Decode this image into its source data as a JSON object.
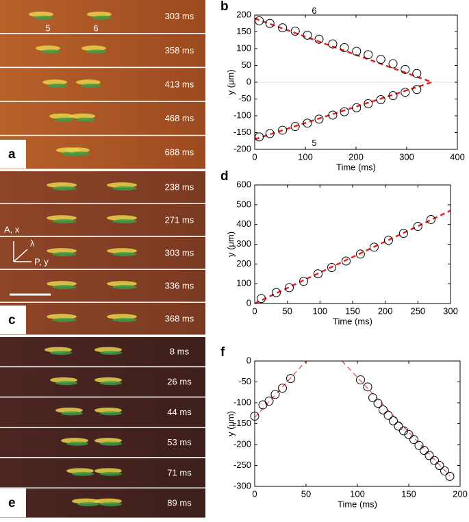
{
  "panels": {
    "a": {
      "label": "a",
      "frames": [
        "303 ms",
        "358 ms",
        "413 ms",
        "468 ms",
        "688 ms"
      ],
      "annotations": [
        "5",
        "6"
      ]
    },
    "c": {
      "label": "c",
      "frames": [
        "238 ms",
        "271 ms",
        "303 ms",
        "336 ms",
        "368 ms"
      ],
      "annotations": [
        "A,  x",
        "λ",
        "P,  y"
      ]
    },
    "e": {
      "label": "e",
      "frames": [
        "8 ms",
        "26 ms",
        "44 ms",
        "53 ms",
        "71 ms",
        "89 ms"
      ]
    }
  },
  "chart_data": [
    {
      "type": "scatter",
      "panel": "b",
      "xlabel": "Time (ms)",
      "ylabel": "y (μm)",
      "xlim": [
        0,
        400
      ],
      "xticks": [
        0,
        100,
        200,
        300,
        400
      ],
      "ylim": [
        -200,
        200
      ],
      "yticks": [
        -200,
        -150,
        -100,
        -50,
        0,
        50,
        100,
        150,
        200
      ],
      "zero_line": true,
      "series": [
        {
          "name": "6",
          "x": [
            9,
            30,
            55,
            80,
            104,
            127,
            154,
            177,
            201,
            224,
            249,
            273,
            297,
            320
          ],
          "values": [
            183,
            175,
            162,
            152,
            140,
            128,
            114,
            103,
            92,
            82,
            68,
            55,
            38,
            26
          ]
        },
        {
          "name": "5",
          "x": [
            9,
            30,
            55,
            80,
            104,
            127,
            154,
            177,
            201,
            224,
            249,
            273,
            297,
            320
          ],
          "values": [
            -163,
            -153,
            -143,
            -132,
            -122,
            -110,
            -98,
            -88,
            -76,
            -64,
            -52,
            -40,
            -30,
            -22
          ]
        }
      ],
      "fits": [
        {
          "x": [
            0,
            350
          ],
          "values": [
            190,
            0
          ]
        },
        {
          "x": [
            0,
            350
          ],
          "values": [
            -170,
            0
          ]
        }
      ],
      "fit_color": "#e8221f",
      "fit_width": 2.5
    },
    {
      "type": "scatter",
      "panel": "d",
      "xlabel": "Time (ms)",
      "ylabel": "y (μm)",
      "xlim": [
        0,
        300
      ],
      "xticks": [
        0,
        50,
        100,
        150,
        200,
        250,
        300
      ],
      "ylim": [
        0,
        600
      ],
      "yticks": [
        0,
        100,
        200,
        300,
        400,
        500,
        600
      ],
      "zero_line": false,
      "series": [
        {
          "x": [
            10,
            33,
            53,
            75,
            97,
            118,
            140,
            162,
            183,
            205,
            228,
            250,
            270
          ],
          "values": [
            25,
            55,
            80,
            112,
            150,
            182,
            215,
            250,
            285,
            320,
            355,
            390,
            425
          ]
        }
      ],
      "fits": [
        {
          "x": [
            0,
            300
          ],
          "values": [
            0,
            470
          ]
        }
      ],
      "fit_color": "#e8221f",
      "fit_width": 2.5
    },
    {
      "type": "scatter",
      "panel": "f",
      "xlabel": "Time (ms)",
      "ylabel": "y (μm)",
      "xlim": [
        0,
        200
      ],
      "xticks": [
        0,
        50,
        100,
        150,
        200
      ],
      "ylim": [
        -300,
        0
      ],
      "yticks": [
        -300,
        -250,
        -200,
        -150,
        -100,
        -50,
        0
      ],
      "zero_line": false,
      "series": [
        {
          "x": [
            0,
            8,
            14,
            20,
            27,
            35,
            103,
            110,
            115,
            120,
            125,
            130,
            135,
            140,
            145,
            150,
            155,
            160,
            165,
            170,
            175,
            180,
            185,
            190
          ],
          "values": [
            -132,
            -105,
            -96,
            -80,
            -65,
            -42,
            -45,
            -62,
            -88,
            -101,
            -117,
            -130,
            -143,
            -156,
            -167,
            -176,
            -188,
            -202,
            -214,
            -226,
            -238,
            -250,
            -263,
            -276
          ]
        }
      ],
      "fits": [
        {
          "x": [
            0,
            50
          ],
          "values": [
            -135,
            0
          ]
        },
        {
          "x": [
            85,
            190
          ],
          "values": [
            0,
            -275
          ]
        }
      ],
      "fit_color": "#e8221f",
      "fit_width": 1
    }
  ]
}
